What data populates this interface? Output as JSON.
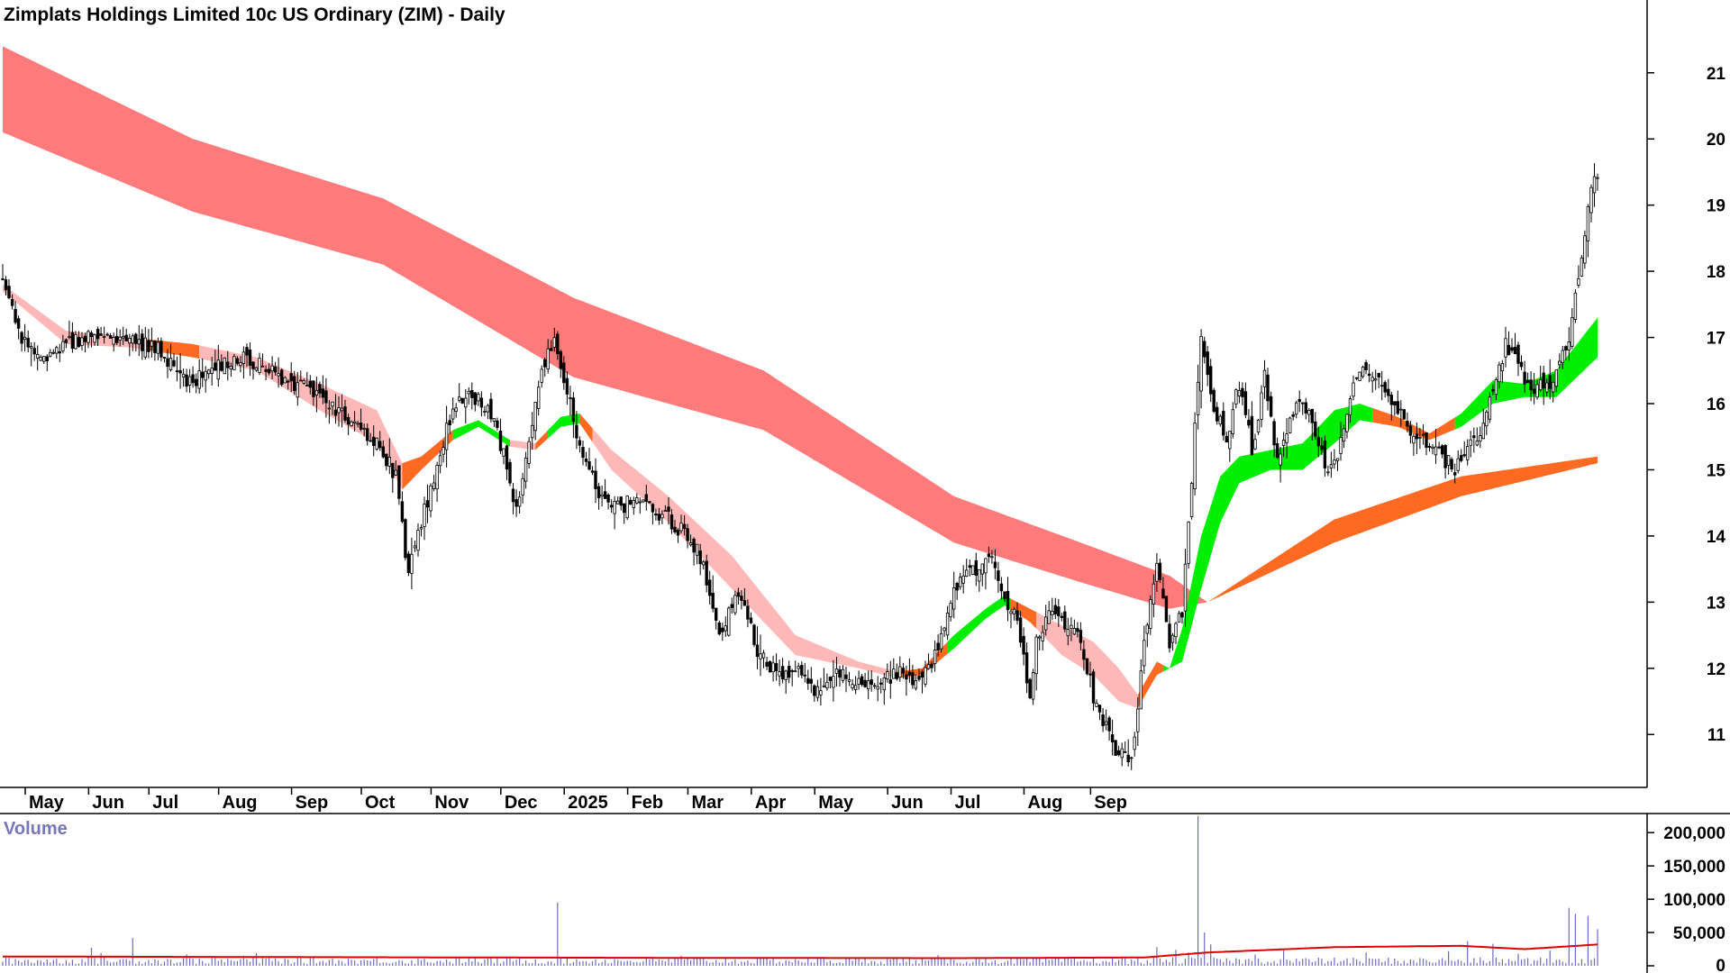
{
  "chart_data": {
    "type": "candlestick",
    "title": "Zimplats Holdings Limited 10c US Ordinary (ZIM) - Daily",
    "price_axis": {
      "ticks": [
        11,
        12,
        13,
        14,
        15,
        16,
        17,
        18,
        19,
        20,
        21
      ],
      "range": [
        10.2,
        22.1
      ]
    },
    "x_labels": [
      "May",
      "Jun",
      "Jul",
      "Aug",
      "Sep",
      "Oct",
      "Nov",
      "Dec",
      "2025",
      "Feb",
      "Mar",
      "Apr",
      "May",
      "Jun",
      "Jul",
      "Aug",
      "Sep"
    ],
    "colors": {
      "long_band_bear": "#ff7b7b",
      "short_band_bear": "#ffb8b8",
      "short_band_bull": "#00ee00",
      "short_band_transition": "#ff6a22",
      "long_band_bull": "#ff6a22",
      "volume_bars": "#6b6bc0",
      "volume_ma": "#dd0000",
      "candles": "#000000"
    },
    "close_waypoints": [
      [
        0,
        17.8
      ],
      [
        6,
        17.0
      ],
      [
        12,
        16.6
      ],
      [
        20,
        16.9
      ],
      [
        30,
        17.1
      ],
      [
        40,
        17.0
      ],
      [
        50,
        16.8
      ],
      [
        58,
        16.3
      ],
      [
        66,
        16.5
      ],
      [
        74,
        16.7
      ],
      [
        82,
        16.6
      ],
      [
        90,
        16.3
      ],
      [
        98,
        16.2
      ],
      [
        106,
        15.9
      ],
      [
        112,
        15.6
      ],
      [
        118,
        15.4
      ],
      [
        124,
        14.9
      ],
      [
        128,
        13.4
      ],
      [
        132,
        14.2
      ],
      [
        136,
        14.9
      ],
      [
        140,
        15.6
      ],
      [
        144,
        16.1
      ],
      [
        150,
        16.1
      ],
      [
        156,
        15.6
      ],
      [
        162,
        14.4
      ],
      [
        166,
        15.4
      ],
      [
        170,
        16.6
      ],
      [
        174,
        16.9
      ],
      [
        178,
        16.2
      ],
      [
        182,
        15.3
      ],
      [
        188,
        14.7
      ],
      [
        192,
        14.4
      ],
      [
        198,
        14.5
      ],
      [
        206,
        14.4
      ],
      [
        214,
        14.1
      ],
      [
        220,
        13.7
      ],
      [
        226,
        12.4
      ],
      [
        232,
        13.2
      ],
      [
        238,
        12.3
      ],
      [
        244,
        11.9
      ],
      [
        250,
        12.0
      ],
      [
        256,
        11.7
      ],
      [
        262,
        11.9
      ],
      [
        270,
        11.8
      ],
      [
        278,
        11.8
      ],
      [
        284,
        12.0
      ],
      [
        288,
        11.7
      ],
      [
        292,
        12.0
      ],
      [
        296,
        12.4
      ],
      [
        300,
        13.2
      ],
      [
        306,
        13.5
      ],
      [
        312,
        13.6
      ],
      [
        316,
        13.1
      ],
      [
        320,
        12.7
      ],
      [
        324,
        11.5
      ],
      [
        326,
        12.4
      ],
      [
        330,
        12.8
      ],
      [
        336,
        12.7
      ],
      [
        340,
        12.4
      ],
      [
        344,
        11.6
      ],
      [
        348,
        11.1
      ],
      [
        352,
        10.7
      ],
      [
        356,
        10.6
      ],
      [
        360,
        12.4
      ],
      [
        364,
        13.6
      ],
      [
        368,
        12.3
      ],
      [
        372,
        12.9
      ],
      [
        374,
        14.1
      ],
      [
        376,
        15.6
      ],
      [
        378,
        16.9
      ],
      [
        382,
        15.9
      ],
      [
        386,
        15.5
      ],
      [
        390,
        16.3
      ],
      [
        394,
        15.3
      ],
      [
        398,
        16.4
      ],
      [
        402,
        15.2
      ],
      [
        406,
        15.7
      ],
      [
        410,
        16.1
      ],
      [
        414,
        15.6
      ],
      [
        418,
        14.9
      ],
      [
        422,
        15.4
      ],
      [
        426,
        16.3
      ],
      [
        430,
        16.6
      ],
      [
        434,
        16.3
      ],
      [
        438,
        16.1
      ],
      [
        442,
        15.7
      ],
      [
        446,
        15.5
      ],
      [
        450,
        15.4
      ],
      [
        454,
        15.2
      ],
      [
        458,
        15.0
      ],
      [
        462,
        15.3
      ],
      [
        466,
        15.6
      ],
      [
        470,
        16.2
      ],
      [
        474,
        16.9
      ],
      [
        478,
        16.6
      ],
      [
        482,
        16.2
      ],
      [
        486,
        16.3
      ],
      [
        490,
        16.4
      ],
      [
        494,
        17.0
      ],
      [
        497,
        17.9
      ],
      [
        500,
        19.0
      ],
      [
        503,
        19.5
      ]
    ],
    "long_band": {
      "upper": [
        [
          0,
          21.4
        ],
        [
          60,
          20.0
        ],
        [
          120,
          19.1
        ],
        [
          180,
          17.6
        ],
        [
          240,
          16.5
        ],
        [
          300,
          14.6
        ],
        [
          340,
          13.9
        ],
        [
          368,
          13.4
        ],
        [
          380,
          13.0
        ],
        [
          420,
          14.25
        ],
        [
          460,
          14.9
        ],
        [
          503,
          15.2
        ]
      ],
      "lower": [
        [
          0,
          20.1
        ],
        [
          60,
          18.9
        ],
        [
          120,
          18.1
        ],
        [
          180,
          16.4
        ],
        [
          240,
          15.6
        ],
        [
          300,
          13.9
        ],
        [
          340,
          13.3
        ],
        [
          368,
          12.9
        ],
        [
          380,
          13.0
        ],
        [
          420,
          13.9
        ],
        [
          460,
          14.6
        ],
        [
          503,
          15.1
        ]
      ],
      "bear_until": 380
    },
    "short_band": {
      "upper": [
        [
          0,
          17.8
        ],
        [
          20,
          17.1
        ],
        [
          40,
          17.0
        ],
        [
          60,
          16.9
        ],
        [
          80,
          16.7
        ],
        [
          100,
          16.3
        ],
        [
          118,
          15.9
        ],
        [
          126,
          15.1
        ],
        [
          132,
          15.2
        ],
        [
          142,
          15.6
        ],
        [
          150,
          15.75
        ],
        [
          160,
          15.45
        ],
        [
          168,
          15.4
        ],
        [
          176,
          15.8
        ],
        [
          182,
          15.85
        ],
        [
          192,
          15.3
        ],
        [
          210,
          14.6
        ],
        [
          230,
          13.7
        ],
        [
          250,
          12.5
        ],
        [
          270,
          12.1
        ],
        [
          282,
          11.95
        ],
        [
          290,
          12.0
        ],
        [
          300,
          12.5
        ],
        [
          310,
          12.9
        ],
        [
          316,
          13.1
        ],
        [
          324,
          12.9
        ],
        [
          334,
          12.65
        ],
        [
          344,
          12.4
        ],
        [
          352,
          12.0
        ],
        [
          358,
          11.6
        ],
        [
          364,
          12.1
        ],
        [
          368,
          12.0
        ],
        [
          372,
          12.6
        ],
        [
          378,
          14.0
        ],
        [
          384,
          14.9
        ],
        [
          390,
          15.2
        ],
        [
          400,
          15.3
        ],
        [
          410,
          15.4
        ],
        [
          420,
          15.9
        ],
        [
          428,
          16.0
        ],
        [
          440,
          15.8
        ],
        [
          450,
          15.55
        ],
        [
          460,
          15.85
        ],
        [
          470,
          16.35
        ],
        [
          480,
          16.3
        ],
        [
          490,
          16.5
        ],
        [
          503,
          17.3
        ]
      ],
      "lower": [
        [
          0,
          17.7
        ],
        [
          20,
          16.9
        ],
        [
          40,
          16.85
        ],
        [
          60,
          16.7
        ],
        [
          80,
          16.5
        ],
        [
          100,
          15.9
        ],
        [
          118,
          15.4
        ],
        [
          126,
          14.7
        ],
        [
          132,
          15.0
        ],
        [
          142,
          15.45
        ],
        [
          150,
          15.65
        ],
        [
          160,
          15.35
        ],
        [
          168,
          15.3
        ],
        [
          176,
          15.65
        ],
        [
          182,
          15.7
        ],
        [
          192,
          15.0
        ],
        [
          210,
          14.2
        ],
        [
          230,
          13.2
        ],
        [
          250,
          12.2
        ],
        [
          270,
          12.0
        ],
        [
          282,
          11.85
        ],
        [
          290,
          11.9
        ],
        [
          300,
          12.3
        ],
        [
          310,
          12.75
        ],
        [
          316,
          12.95
        ],
        [
          324,
          12.7
        ],
        [
          334,
          12.2
        ],
        [
          344,
          11.9
        ],
        [
          352,
          11.5
        ],
        [
          358,
          11.4
        ],
        [
          364,
          11.9
        ],
        [
          368,
          12.0
        ],
        [
          372,
          12.1
        ],
        [
          378,
          13.2
        ],
        [
          384,
          14.2
        ],
        [
          390,
          14.8
        ],
        [
          400,
          15.0
        ],
        [
          410,
          15.0
        ],
        [
          420,
          15.4
        ],
        [
          428,
          15.75
        ],
        [
          440,
          15.65
        ],
        [
          450,
          15.45
        ],
        [
          460,
          15.65
        ],
        [
          470,
          16.0
        ],
        [
          480,
          16.1
        ],
        [
          490,
          16.1
        ],
        [
          503,
          16.7
        ]
      ],
      "segments": [
        {
          "from": 0,
          "to": 44,
          "state": "bear"
        },
        {
          "from": 44,
          "to": 62,
          "state": "transition"
        },
        {
          "from": 62,
          "to": 126,
          "state": "bear"
        },
        {
          "from": 126,
          "to": 142,
          "state": "transition"
        },
        {
          "from": 142,
          "to": 160,
          "state": "bull"
        },
        {
          "from": 160,
          "to": 168,
          "state": "bear"
        },
        {
          "from": 168,
          "to": 172,
          "state": "transition"
        },
        {
          "from": 172,
          "to": 182,
          "state": "bull"
        },
        {
          "from": 182,
          "to": 186,
          "state": "transition"
        },
        {
          "from": 186,
          "to": 282,
          "state": "bear"
        },
        {
          "from": 282,
          "to": 298,
          "state": "transition"
        },
        {
          "from": 298,
          "to": 318,
          "state": "bull"
        },
        {
          "from": 318,
          "to": 326,
          "state": "transition"
        },
        {
          "from": 326,
          "to": 358,
          "state": "bear"
        },
        {
          "from": 358,
          "to": 366,
          "state": "transition"
        },
        {
          "from": 366,
          "to": 432,
          "state": "bull"
        },
        {
          "from": 432,
          "to": 458,
          "state": "transition"
        },
        {
          "from": 458,
          "to": 503,
          "state": "bull"
        }
      ]
    },
    "volume_axis": {
      "ticks": [
        0,
        50000,
        100000,
        150000,
        200000
      ],
      "tick_labels": [
        "0",
        "50,000",
        "100,000",
        "150,000",
        "200,000"
      ],
      "range": [
        0,
        230000
      ]
    },
    "volume_title": "Volume",
    "volume_spikes": [
      [
        28,
        27000
      ],
      [
        31,
        19000
      ],
      [
        41,
        42000
      ],
      [
        58,
        17000
      ],
      [
        66,
        15000
      ],
      [
        76,
        15000
      ],
      [
        80,
        19000
      ],
      [
        84,
        15000
      ],
      [
        175,
        95000
      ],
      [
        214,
        15000
      ],
      [
        295,
        16000
      ],
      [
        310,
        12000
      ],
      [
        364,
        28000
      ],
      [
        370,
        24000
      ],
      [
        374,
        20000
      ],
      [
        377,
        225000
      ],
      [
        379,
        50000
      ],
      [
        381,
        32000
      ],
      [
        395,
        17000
      ],
      [
        404,
        23000
      ],
      [
        430,
        20000
      ],
      [
        456,
        22000
      ],
      [
        462,
        37000
      ],
      [
        470,
        33000
      ],
      [
        478,
        18000
      ],
      [
        488,
        23000
      ],
      [
        494,
        87000
      ],
      [
        496,
        78000
      ],
      [
        500,
        75000
      ],
      [
        503,
        55000
      ]
    ],
    "volume_base": 9000,
    "volume_ma": [
      [
        0,
        14000
      ],
      [
        100,
        13000
      ],
      [
        200,
        12000
      ],
      [
        300,
        11500
      ],
      [
        360,
        12500
      ],
      [
        380,
        20000
      ],
      [
        420,
        28000
      ],
      [
        460,
        30000
      ],
      [
        480,
        25000
      ],
      [
        503,
        32000
      ]
    ]
  }
}
